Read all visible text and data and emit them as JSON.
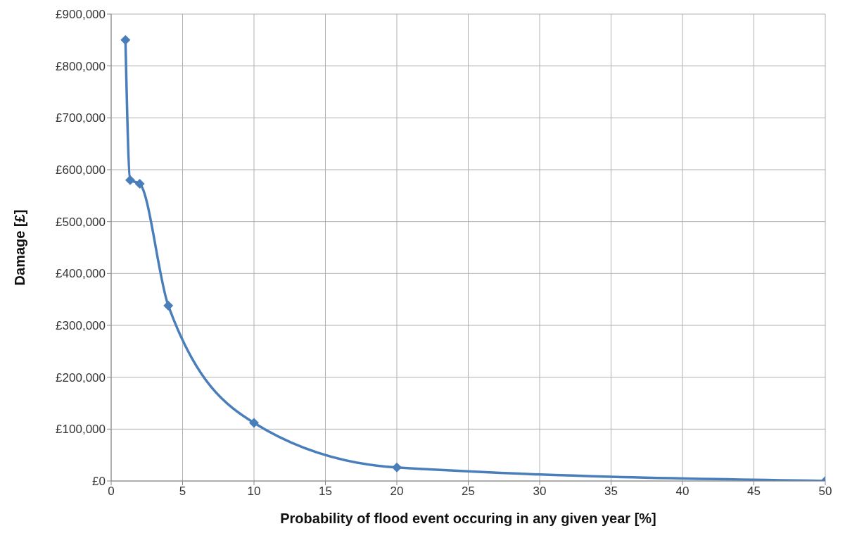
{
  "chart_data": {
    "type": "line",
    "xlabel": "Probability of flood event occuring in any given year [%]",
    "ylabel": "Damage [£]",
    "x": [
      1,
      1.33,
      2,
      4,
      10,
      20,
      50
    ],
    "series": [
      {
        "color": "#4a7ebb",
        "values": [
          850000,
          580000,
          573000,
          338000,
          112000,
          26000,
          0
        ]
      }
    ],
    "xlim": [
      0,
      50
    ],
    "xticks": [
      0,
      5,
      10,
      15,
      20,
      25,
      30,
      35,
      40,
      45,
      50
    ],
    "ylim": [
      0,
      900000
    ],
    "yticks": [
      {
        "value": 0,
        "label": "£0"
      },
      {
        "value": 100000,
        "label": "£100,000"
      },
      {
        "value": 200000,
        "label": "£200,000"
      },
      {
        "value": 300000,
        "label": "£300,000"
      },
      {
        "value": 400000,
        "label": "£400,000"
      },
      {
        "value": 500000,
        "label": "£500,000"
      },
      {
        "value": 600000,
        "label": "£600,000"
      },
      {
        "value": 700000,
        "label": "£700,000"
      },
      {
        "value": 800000,
        "label": "£800,000"
      },
      {
        "value": 900000,
        "label": "£900,000"
      }
    ],
    "grid": true,
    "marker": "diamond",
    "line_style": "solid"
  }
}
